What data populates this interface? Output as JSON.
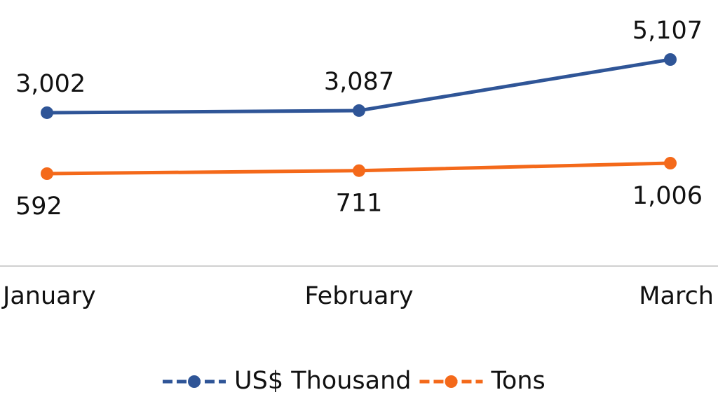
{
  "chart_data": {
    "type": "line",
    "categories": [
      "January",
      "February",
      "March"
    ],
    "series": [
      {
        "name": "US$ Thousand",
        "color": "#2f5597",
        "values": [
          3002,
          3087,
          5107
        ],
        "value_labels": [
          "3,002",
          "3,087",
          "5,107"
        ]
      },
      {
        "name": "Tons",
        "color": "#f4691a",
        "values": [
          592,
          711,
          1006
        ],
        "value_labels": [
          "592",
          "711",
          "1,006"
        ]
      }
    ],
    "legend": "bottom"
  }
}
